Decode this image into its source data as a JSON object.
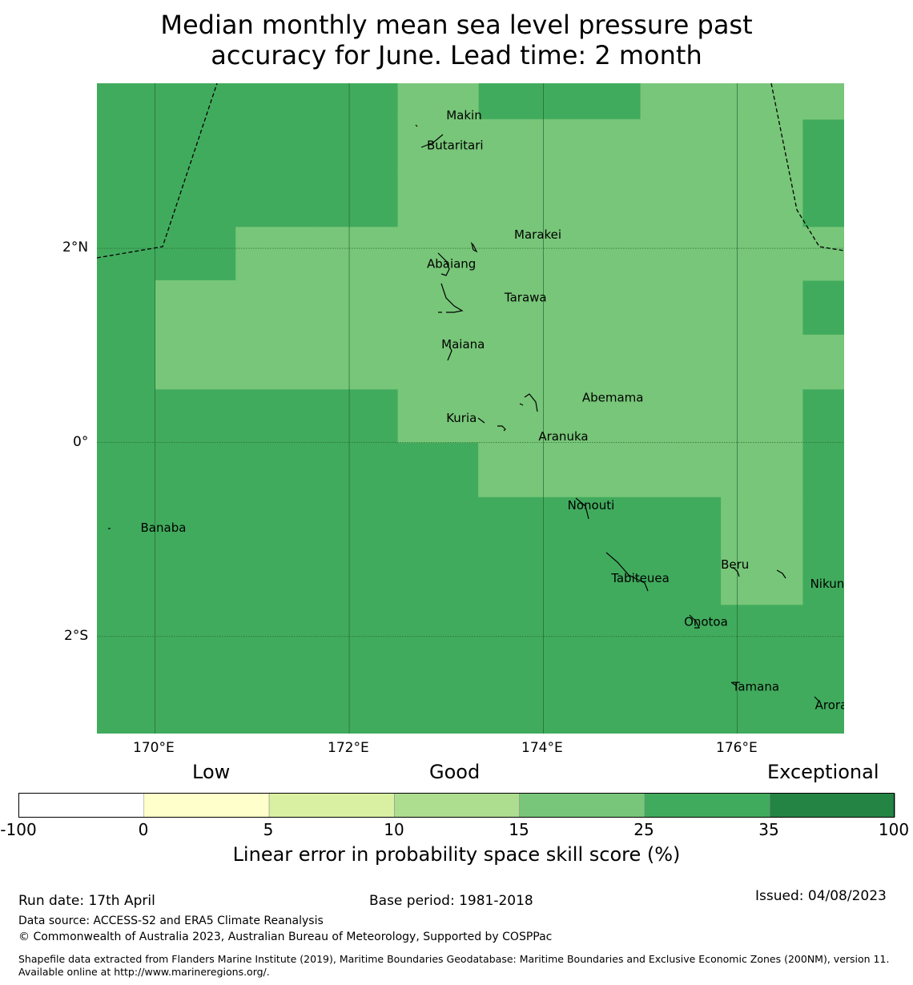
{
  "title": {
    "line1": "Median monthly mean sea level pressure past",
    "line2": "accuracy for June. Lead time: 2 month"
  },
  "map": {
    "lon_range": [
      169.4,
      177.1
    ],
    "lat_range": [
      -3.0,
      3.7
    ],
    "lon_ticks": [
      {
        "value": 170,
        "label": "170°E"
      },
      {
        "value": 172,
        "label": "172°E"
      },
      {
        "value": 174,
        "label": "174°E"
      },
      {
        "value": 176,
        "label": "176°E"
      }
    ],
    "lat_ticks": [
      {
        "value": 2,
        "label": "2°N"
      },
      {
        "value": 0,
        "label": "0°"
      },
      {
        "value": -2,
        "label": "2°S"
      }
    ],
    "colors": {
      "band_25_35": "#41ab5d",
      "band_15_25": "#78c679"
    },
    "grid_lon_edges": [
      169.4,
      170.0,
      170.83,
      171.67,
      172.5,
      173.33,
      174.17,
      175.0,
      175.83,
      176.67,
      177.1
    ],
    "grid_lat_edges": [
      3.7,
      3.33,
      2.78,
      2.22,
      1.67,
      1.11,
      0.55,
      0.0,
      -0.56,
      -1.67,
      -2.22,
      -2.78,
      -3.0
    ],
    "cells_light": [
      [
        0,
        4
      ],
      [
        0,
        7
      ],
      [
        0,
        8
      ],
      [
        0,
        9
      ],
      [
        1,
        4
      ],
      [
        1,
        5
      ],
      [
        1,
        6
      ],
      [
        1,
        7
      ],
      [
        1,
        8
      ],
      [
        2,
        4
      ],
      [
        2,
        5
      ],
      [
        2,
        6
      ],
      [
        2,
        7
      ],
      [
        2,
        8
      ],
      [
        3,
        2
      ],
      [
        3,
        3
      ],
      [
        3,
        4
      ],
      [
        3,
        5
      ],
      [
        3,
        6
      ],
      [
        3,
        7
      ],
      [
        3,
        8
      ],
      [
        3,
        9
      ],
      [
        4,
        1
      ],
      [
        4,
        2
      ],
      [
        4,
        3
      ],
      [
        4,
        4
      ],
      [
        4,
        5
      ],
      [
        4,
        6
      ],
      [
        4,
        7
      ],
      [
        4,
        8
      ],
      [
        5,
        1
      ],
      [
        5,
        2
      ],
      [
        5,
        3
      ],
      [
        5,
        4
      ],
      [
        5,
        5
      ],
      [
        5,
        6
      ],
      [
        5,
        7
      ],
      [
        5,
        8
      ],
      [
        5,
        9
      ],
      [
        6,
        4
      ],
      [
        6,
        5
      ],
      [
        6,
        6
      ],
      [
        6,
        7
      ],
      [
        6,
        8
      ],
      [
        7,
        5
      ],
      [
        7,
        6
      ],
      [
        7,
        7
      ],
      [
        7,
        8
      ],
      [
        8,
        8
      ]
    ],
    "places": [
      {
        "name": "Makin",
        "lon": 173.0,
        "lat": 3.33
      },
      {
        "name": "Butaritari",
        "lon": 172.8,
        "lat": 3.02
      },
      {
        "name": "Marakei",
        "lon": 173.7,
        "lat": 2.1
      },
      {
        "name": "Abaiang",
        "lon": 172.8,
        "lat": 1.8
      },
      {
        "name": "Tarawa",
        "lon": 173.6,
        "lat": 1.45
      },
      {
        "name": "Maiana",
        "lon": 172.95,
        "lat": 0.97
      },
      {
        "name": "Abemama",
        "lon": 174.4,
        "lat": 0.42
      },
      {
        "name": "Kuria",
        "lon": 173.0,
        "lat": 0.21
      },
      {
        "name": "Aranuka",
        "lon": 173.95,
        "lat": 0.02
      },
      {
        "name": "Banaba",
        "lon": 169.85,
        "lat": -0.92
      },
      {
        "name": "Nonouti",
        "lon": 174.25,
        "lat": -0.69
      },
      {
        "name": "Beru",
        "lon": 175.83,
        "lat": -1.3
      },
      {
        "name": "Nikunau",
        "lon": 176.75,
        "lat": -1.5
      },
      {
        "name": "Tabiteuea",
        "lon": 174.7,
        "lat": -1.44
      },
      {
        "name": "Onotoa",
        "lon": 175.45,
        "lat": -1.89
      },
      {
        "name": "Tamana",
        "lon": 175.95,
        "lat": -2.56
      },
      {
        "name": "Arorae",
        "lon": 176.8,
        "lat": -2.75
      }
    ]
  },
  "colorbar": {
    "categories": {
      "low": "Low",
      "good": "Good",
      "exceptional": "Exceptional"
    },
    "ticks": [
      "-100",
      "0",
      "5",
      "10",
      "15",
      "25",
      "35",
      "100"
    ],
    "colors": [
      "#ffffff",
      "#ffffcc",
      "#d9f0a3",
      "#addd8e",
      "#78c679",
      "#41ab5d",
      "#238443"
    ],
    "label": "Linear error in probability space skill score (%)"
  },
  "footer": {
    "run_date": "Run date: 17th April",
    "base_period": "Base period: 1981-2018",
    "issued": "Issued: 04/08/2023",
    "data_source": "Data source: ACCESS-S2 and ERA5 Climate Reanalysis",
    "copyright": "© Commonwealth of Australia 2023, Australian Bureau of Meteorology, Supported by COSPPac",
    "shapefile": "Shapefile data extracted from Flanders Marine Institute (2019), Maritime Boundaries Geodatabase: Maritime Boundaries and Exclusive Economic Zones (200NM), version 11. Available online at http://www.marineregions.org/."
  }
}
